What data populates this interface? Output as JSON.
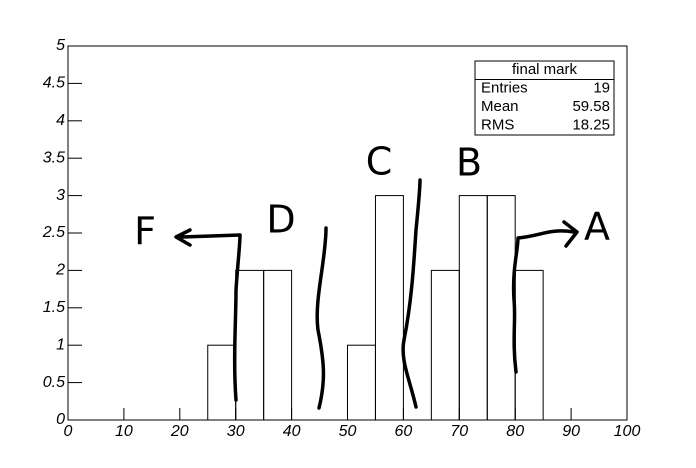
{
  "chart_data": {
    "type": "histogram",
    "title": "final mark",
    "bins": [
      0,
      5,
      10,
      15,
      20,
      25,
      30,
      35,
      40,
      45,
      50,
      55,
      60,
      65,
      70,
      75,
      80,
      85,
      90,
      95,
      100
    ],
    "values": [
      0,
      0,
      0,
      0,
      0,
      1,
      2,
      2,
      0,
      0,
      1,
      3,
      0,
      2,
      3,
      3,
      2,
      0,
      0,
      0
    ],
    "color": "#000000",
    "xlim": [
      0,
      100
    ],
    "xticks": [
      0,
      10,
      20,
      30,
      40,
      50,
      60,
      70,
      80,
      90,
      100
    ],
    "ylim": [
      0,
      5
    ],
    "yticks": [
      0,
      0.5,
      1,
      1.5,
      2,
      2.5,
      3,
      3.5,
      4,
      4.5,
      5
    ],
    "stats": [
      {
        "label": "Entries",
        "value": 19
      },
      {
        "label": "Mean",
        "value": 59.58
      },
      {
        "label": "RMS",
        "value": 18.25
      }
    ],
    "annotations": [
      "F",
      "D",
      "C",
      "B",
      "A"
    ]
  }
}
